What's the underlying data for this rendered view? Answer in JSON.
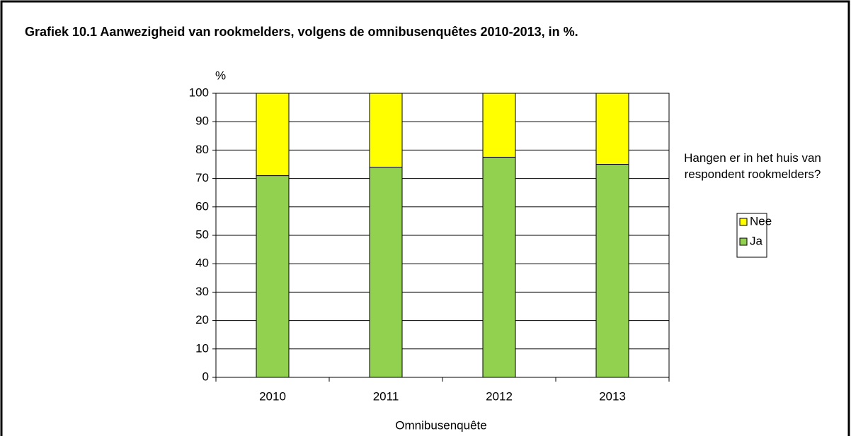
{
  "chart_data": {
    "type": "stacked_bar",
    "title": "Grafiek 10.1  Aanwezigheid van rookmelders, volgens de omnibusenquêtes 2010-2013, in %.",
    "y_label": "%",
    "x_label": "Omnibusenquête",
    "legend_title": "Hangen er in het huis van respondent rookmelders?",
    "categories": [
      "2010",
      "2011",
      "2012",
      "2013"
    ],
    "series": [
      {
        "name": "Ja",
        "color": "#92d050",
        "values": [
          71,
          74,
          77.5,
          75
        ]
      },
      {
        "name": "Nee",
        "color": "#ffff00",
        "values": [
          29,
          26,
          22.5,
          25
        ]
      }
    ],
    "ylim": [
      0,
      100
    ],
    "yticks": [
      0,
      10,
      20,
      30,
      40,
      50,
      60,
      70,
      80,
      90,
      100
    ],
    "grid": true,
    "legend": "right"
  }
}
